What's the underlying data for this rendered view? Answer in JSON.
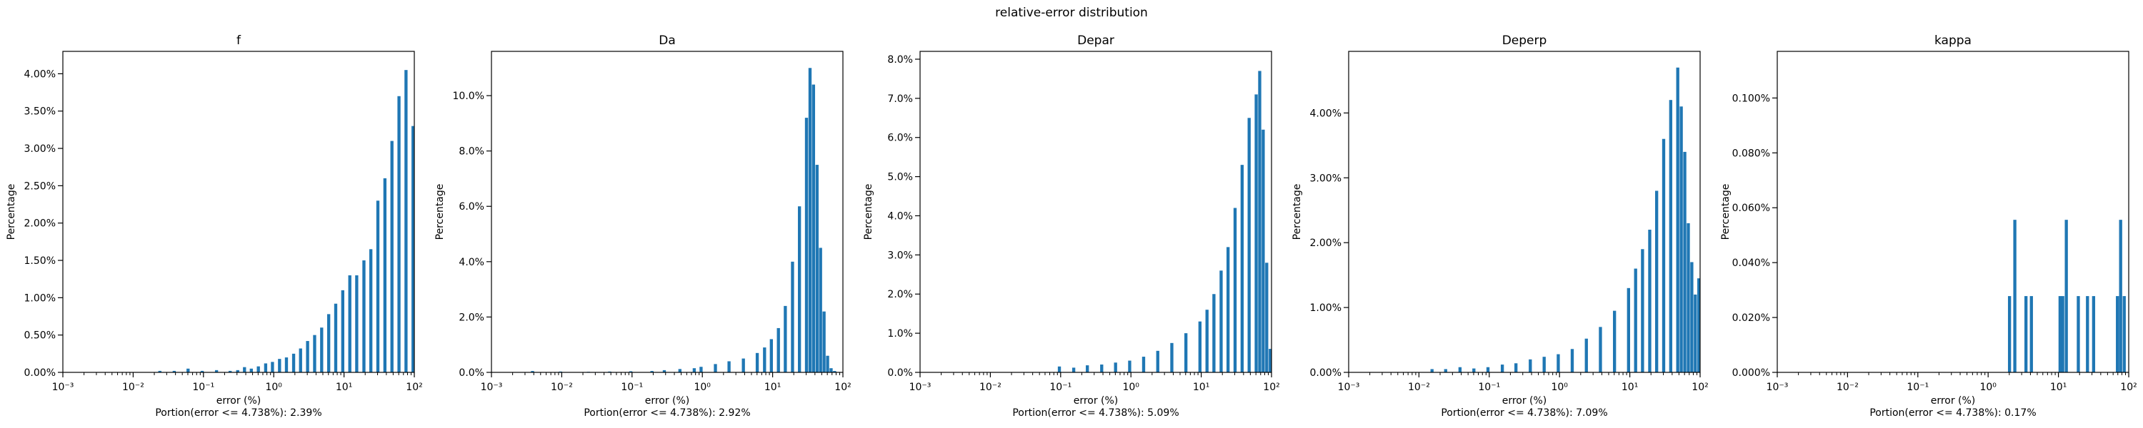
{
  "figure": {
    "suptitle": "relative-error distribution",
    "bar_color": "#1f77b4"
  },
  "chart_data": [
    {
      "type": "bar",
      "title": "f",
      "xlabel": "error (%)",
      "ylabel": "Percentage",
      "note": "Portion(error <= 4.738%): 2.39%",
      "xscale": "log",
      "xlim": [
        0.001,
        100
      ],
      "ylim": [
        0,
        4.3
      ],
      "yticks": [
        0,
        0.5,
        1.0,
        1.5,
        2.0,
        2.5,
        3.0,
        3.5,
        4.0
      ],
      "ytick_labels": [
        "0.00%",
        "0.50%",
        "1.00%",
        "1.50%",
        "2.00%",
        "2.50%",
        "3.00%",
        "3.50%",
        "4.00%"
      ],
      "bins_per_decade": 25,
      "grid": false,
      "x": [
        0.025,
        0.04,
        0.063,
        0.1,
        0.16,
        0.25,
        0.32,
        0.4,
        0.5,
        0.63,
        0.8,
        1.0,
        1.26,
        1.58,
        2.0,
        2.51,
        3.16,
        3.98,
        5.01,
        6.31,
        7.94,
        10.0,
        12.6,
        15.8,
        20.0,
        25.1,
        31.6,
        39.8,
        50.1,
        63.1,
        79.4,
        100
      ],
      "values": [
        0.02,
        0.02,
        0.05,
        0.02,
        0.03,
        0.02,
        0.03,
        0.07,
        0.05,
        0.08,
        0.12,
        0.14,
        0.18,
        0.2,
        0.25,
        0.32,
        0.42,
        0.5,
        0.6,
        0.78,
        0.92,
        1.1,
        1.3,
        1.3,
        1.5,
        1.65,
        2.3,
        2.6,
        3.1,
        3.7,
        4.05,
        3.3
      ]
    },
    {
      "type": "bar",
      "title": "Da",
      "xlabel": "error (%)",
      "ylabel": "Percentage",
      "note": "Portion(error <= 4.738%): 2.92%",
      "xscale": "log",
      "xlim": [
        0.001,
        100
      ],
      "ylim": [
        0,
        11.6
      ],
      "yticks": [
        0,
        2,
        4,
        6,
        8,
        10
      ],
      "ytick_labels": [
        "0.0%",
        "2.0%",
        "4.0%",
        "6.0%",
        "8.0%",
        "10.0%"
      ],
      "bins_per_decade": 25,
      "grid": false,
      "x": [
        0.004,
        0.01,
        0.025,
        0.05,
        0.1,
        0.2,
        0.3,
        0.5,
        0.8,
        1.0,
        1.6,
        2.5,
        4.0,
        6.3,
        8.0,
        10.0,
        12.6,
        15.8,
        20.0,
        25.1,
        31.6,
        35.5,
        39.8,
        44.7,
        50.1,
        56.2,
        63.1,
        70.8,
        79.4
      ],
      "values": [
        0.05,
        0.03,
        0.02,
        0.03,
        0.04,
        0.05,
        0.08,
        0.12,
        0.15,
        0.2,
        0.3,
        0.4,
        0.5,
        0.7,
        0.9,
        1.2,
        1.6,
        2.4,
        4.0,
        6.0,
        9.2,
        11.0,
        10.4,
        7.5,
        4.5,
        2.2,
        0.6,
        0.15,
        0.05
      ]
    },
    {
      "type": "bar",
      "title": "Depar",
      "xlabel": "error (%)",
      "ylabel": "Percentage",
      "note": "Portion(error <= 4.738%): 5.09%",
      "xscale": "log",
      "xlim": [
        0.001,
        100
      ],
      "ylim": [
        0,
        8.2
      ],
      "yticks": [
        0,
        1,
        2,
        3,
        4,
        5,
        6,
        7,
        8
      ],
      "ytick_labels": [
        "0.0%",
        "1.0%",
        "2.0%",
        "3.0%",
        "4.0%",
        "5.0%",
        "6.0%",
        "7.0%",
        "8.0%"
      ],
      "bins_per_decade": 25,
      "grid": false,
      "x": [
        0.1,
        0.16,
        0.25,
        0.4,
        0.63,
        1.0,
        1.58,
        2.51,
        3.98,
        6.31,
        10.0,
        12.6,
        15.8,
        20.0,
        25.1,
        31.6,
        39.8,
        50.1,
        63.1,
        70.8,
        79.4,
        89.1,
        100
      ],
      "values": [
        0.15,
        0.12,
        0.18,
        0.2,
        0.25,
        0.3,
        0.4,
        0.55,
        0.75,
        1.0,
        1.3,
        1.6,
        2.0,
        2.6,
        3.2,
        4.2,
        5.3,
        6.5,
        7.1,
        7.7,
        6.2,
        2.8,
        0.6
      ]
    },
    {
      "type": "bar",
      "title": "Deperp",
      "xlabel": "error (%)",
      "ylabel": "Percentage",
      "note": "Portion(error <= 4.738%): 7.09%",
      "xscale": "log",
      "xlim": [
        0.001,
        100
      ],
      "ylim": [
        0,
        4.95
      ],
      "yticks": [
        0,
        1,
        2,
        3,
        4
      ],
      "ytick_labels": [
        "0.00%",
        "1.00%",
        "2.00%",
        "3.00%",
        "4.00%"
      ],
      "bins_per_decade": 25,
      "grid": false,
      "x": [
        0.016,
        0.025,
        0.04,
        0.063,
        0.1,
        0.16,
        0.25,
        0.4,
        0.63,
        1.0,
        1.58,
        2.51,
        3.98,
        6.31,
        10.0,
        12.6,
        15.8,
        20.0,
        25.1,
        31.6,
        39.8,
        50.1,
        56.2,
        63.1,
        70.8,
        79.4,
        89.1,
        100
      ],
      "values": [
        0.05,
        0.05,
        0.08,
        0.06,
        0.08,
        0.12,
        0.14,
        0.2,
        0.24,
        0.28,
        0.36,
        0.52,
        0.7,
        0.95,
        1.3,
        1.6,
        1.9,
        2.2,
        2.8,
        3.6,
        4.2,
        4.7,
        4.1,
        3.4,
        2.3,
        1.7,
        1.2,
        1.45
      ]
    },
    {
      "type": "bar",
      "title": "kappa",
      "xlabel": "error (%)",
      "ylabel": "Percentage",
      "note": "Portion(error <= 4.738%): 0.17%",
      "xscale": "log",
      "xlim": [
        0.001,
        100
      ],
      "ylim": [
        0,
        0.117
      ],
      "yticks": [
        0,
        0.02,
        0.04,
        0.06,
        0.08,
        0.1
      ],
      "ytick_labels": [
        "0.000%",
        "0.020%",
        "0.040%",
        "0.060%",
        "0.080%",
        "0.100%"
      ],
      "bins_per_decade": 25,
      "grid": false,
      "x": [
        2.1,
        2.5,
        3.6,
        4.3,
        11.0,
        12.0,
        13.5,
        20.0,
        27.0,
        33.0,
        72.0,
        80.0,
        90.0
      ],
      "values": [
        0.0278,
        0.0556,
        0.0278,
        0.0278,
        0.0278,
        0.0278,
        0.0556,
        0.0278,
        0.0278,
        0.0278,
        0.0278,
        0.0556,
        0.0278
      ]
    }
  ]
}
